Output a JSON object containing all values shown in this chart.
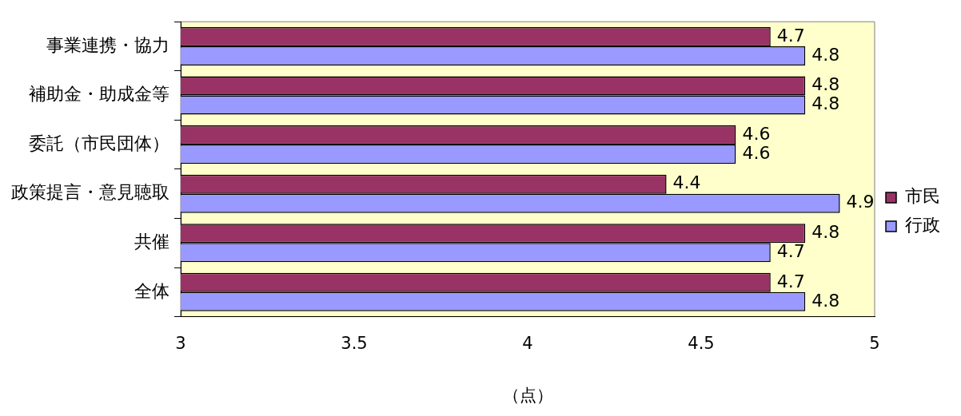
{
  "chart_data": {
    "type": "bar",
    "orientation": "horizontal",
    "categories": [
      "事業連携・協力",
      "補助金・助成金等",
      "委託（市民団体）",
      "政策提言・意見聴取",
      "共催",
      "全体"
    ],
    "series": [
      {
        "name": "市民",
        "color": "#993366",
        "values": [
          4.7,
          4.8,
          4.6,
          4.4,
          4.8,
          4.7
        ]
      },
      {
        "name": "行政",
        "color": "#9999ff",
        "values": [
          4.8,
          4.8,
          4.6,
          4.9,
          4.7,
          4.8
        ]
      }
    ],
    "xlim": [
      3,
      5
    ],
    "xticks": [
      3,
      3.5,
      4,
      4.5,
      5
    ],
    "xlabel": "（点）",
    "data_labels": true,
    "legend": "right",
    "grid": false
  }
}
